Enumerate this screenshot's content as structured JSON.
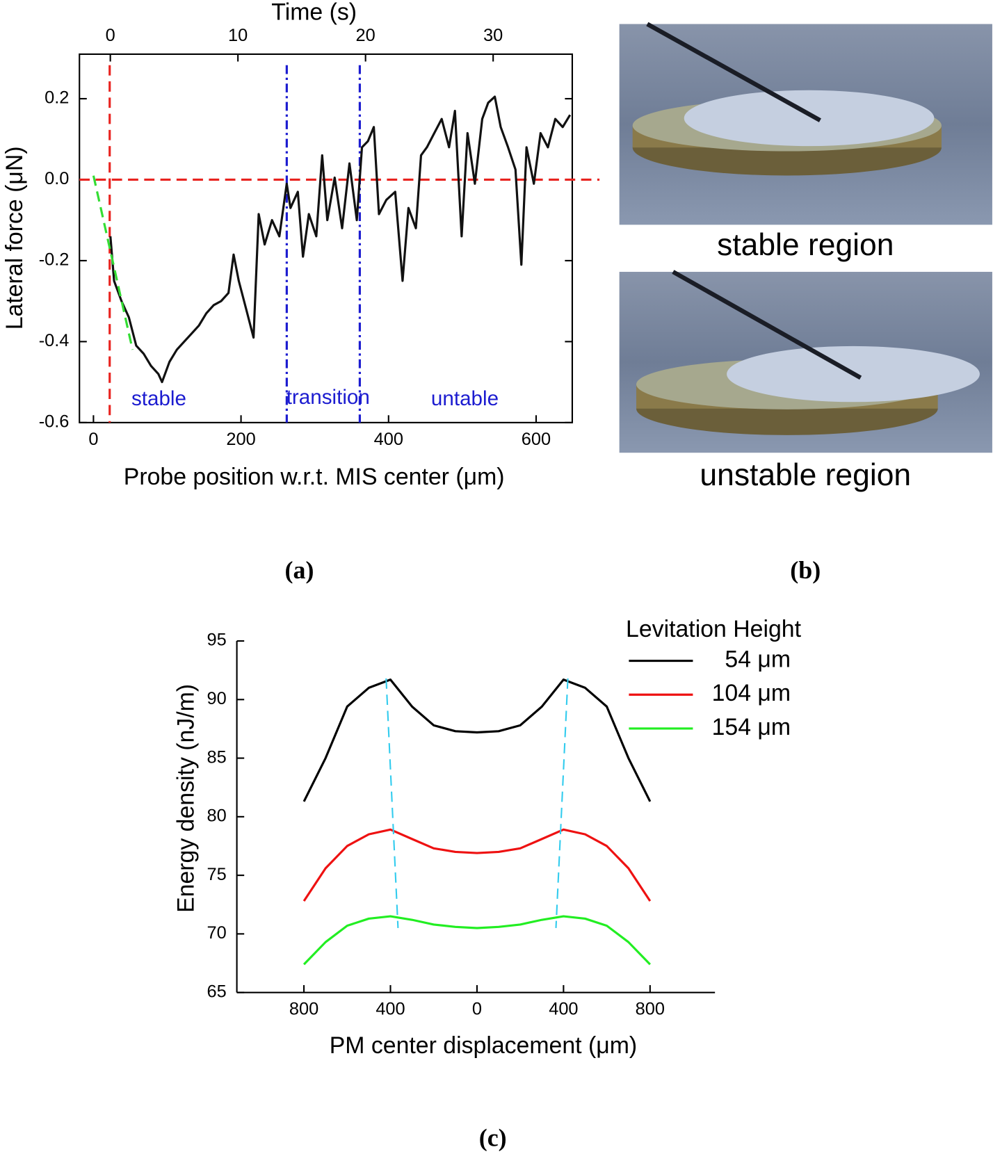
{
  "chart_data": [
    {
      "type": "line",
      "xlabel": "Probe position w.r.t. MIS center (μm)",
      "ylabel": "Lateral force (μN)",
      "x2label": "Time (s)",
      "xlim": [
        -19,
        649
      ],
      "xticks": [
        0,
        200,
        400,
        600
      ],
      "x2lim": [
        -2.42,
        36.2
      ],
      "x2ticks": [
        0,
        10,
        20,
        30
      ],
      "ylim": [
        -0.6,
        0.31
      ],
      "yticks": [
        -0.6,
        -0.4,
        -0.2,
        {
          "value": 0,
          "label": "0.0"
        },
        0.2
      ],
      "frame": "box",
      "series": [
        {
          "color": "#111111",
          "style": "solid",
          "x": [
            23,
            28,
            38,
            48,
            58,
            68,
            78,
            88,
            93,
            103,
            113,
            123,
            133,
            143,
            153,
            163,
            173,
            183,
            190,
            197,
            207,
            217,
            224,
            232,
            242,
            252,
            262,
            267,
            277,
            284,
            292,
            302,
            310,
            317,
            327,
            337,
            347,
            357,
            364,
            372,
            380,
            387,
            397,
            409,
            419,
            427,
            437,
            444,
            452,
            462,
            472,
            482,
            490,
            499,
            507,
            517,
            527,
            535,
            544,
            552,
            562,
            572,
            580,
            587,
            597,
            606,
            616,
            626,
            636,
            646
          ],
          "values": [
            -0.14,
            -0.25,
            -0.3,
            -0.34,
            -0.41,
            -0.43,
            -0.46,
            -0.48,
            -0.5,
            -0.45,
            -0.42,
            -0.4,
            -0.38,
            -0.36,
            -0.33,
            -0.31,
            -0.3,
            -0.28,
            -0.185,
            -0.25,
            -0.32,
            -0.39,
            -0.085,
            -0.16,
            -0.1,
            -0.14,
            -0.01,
            -0.07,
            -0.03,
            -0.19,
            -0.085,
            -0.14,
            0.06,
            -0.1,
            0.005,
            -0.12,
            0.04,
            -0.1,
            0.08,
            0.095,
            0.13,
            -0.085,
            -0.05,
            -0.03,
            -0.25,
            -0.07,
            -0.12,
            0.06,
            0.08,
            0.115,
            0.15,
            0.08,
            0.17,
            -0.14,
            0.115,
            -0.01,
            0.15,
            0.19,
            0.205,
            0.13,
            0.08,
            0.025,
            -0.21,
            0.08,
            -0.01,
            0.115,
            0.08,
            0.15,
            0.13,
            0.16
          ]
        },
        {
          "color": "#33dd33",
          "style": "dashed",
          "x": [
            0,
            53
          ],
          "values": [
            0.01,
            -0.42
          ]
        }
      ],
      "vlines": [
        {
          "x": 22,
          "color": "#e8231f",
          "style": "dashed"
        },
        {
          "x": 262,
          "color": "#1c1cd0",
          "style": "dashdot"
        },
        {
          "x": 361,
          "color": "#1c1cd0",
          "style": "dashdot"
        }
      ],
      "hlines": [
        {
          "y": 0,
          "color": "#e8231f",
          "style": "dashed"
        }
      ],
      "annotations": [
        "stable",
        "transition",
        "untable"
      ],
      "annotation_color": "#1c1cd0"
    },
    {
      "type": "line",
      "xlabel": "PM center displacement (μm)",
      "ylabel": "Energy density (nJ/m)",
      "xlim": [
        -1110,
        1100
      ],
      "xticks": [
        {
          "value": -800,
          "label": "800"
        },
        {
          "value": -400,
          "label": "400"
        },
        0,
        400,
        {
          "value": 800,
          "label": "800"
        }
      ],
      "ylim": [
        65,
        95
      ],
      "yticks": [
        65,
        70,
        75,
        80,
        85,
        90,
        95
      ],
      "frame": "axes",
      "x": [
        -800,
        -700,
        -600,
        -500,
        -400,
        -300,
        -200,
        -100,
        0,
        100,
        200,
        300,
        400,
        500,
        600,
        700,
        800
      ],
      "series": [
        {
          "name": "54 μm",
          "color": "#000000",
          "style": "solid",
          "values": [
            81.3,
            85.0,
            89.4,
            91.0,
            91.7,
            89.4,
            87.8,
            87.3,
            87.2,
            87.3,
            87.8,
            89.4,
            91.7,
            91.0,
            89.4,
            85.0,
            81.3
          ]
        },
        {
          "name": "104 μm",
          "color": "#ee1111",
          "style": "solid",
          "values": [
            72.8,
            75.6,
            77.5,
            78.5,
            78.9,
            78.1,
            77.3,
            77.0,
            76.9,
            77.0,
            77.3,
            78.1,
            78.9,
            78.5,
            77.5,
            75.6,
            72.8
          ]
        },
        {
          "name": "154 μm",
          "color": "#22ee22",
          "style": "solid",
          "values": [
            67.4,
            69.3,
            70.7,
            71.3,
            71.5,
            71.2,
            70.8,
            70.6,
            70.5,
            70.6,
            70.8,
            71.2,
            71.5,
            71.3,
            70.7,
            69.3,
            67.4
          ]
        }
      ],
      "legend_title": "Levitation Height",
      "guides": [
        {
          "color": "#33ccee",
          "style": "dashed",
          "x": [
            -420,
            -365
          ],
          "y": [
            91.8,
            70.5
          ]
        },
        {
          "color": "#33ccee",
          "style": "dashed",
          "x": [
            420,
            365
          ],
          "y": [
            91.8,
            70.5
          ]
        }
      ]
    }
  ],
  "photos": {
    "captions": [
      "stable region",
      "unstable region"
    ]
  },
  "panel_labels": [
    "(a)",
    "(b)",
    "(c)"
  ]
}
